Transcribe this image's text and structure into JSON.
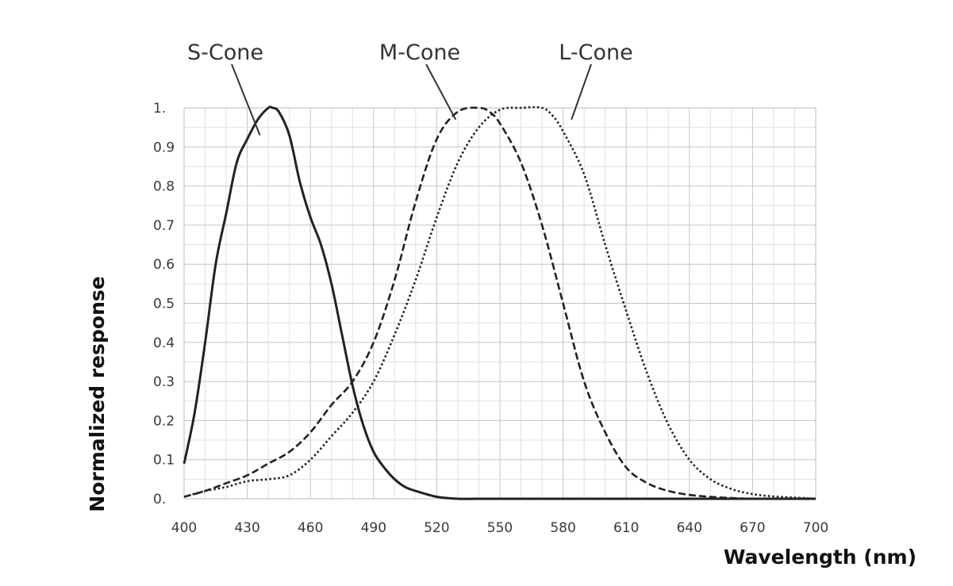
{
  "chart_data": {
    "type": "line",
    "title": "",
    "xlabel": "Wavelength (nm)",
    "ylabel": "Normalized response",
    "xlim": [
      400,
      700
    ],
    "ylim": [
      0,
      1
    ],
    "grid": true,
    "x_ticks": [
      {
        "value": 400,
        "label": "400"
      },
      {
        "value": 430,
        "label": "430"
      },
      {
        "value": 460,
        "label": "460"
      },
      {
        "value": 490,
        "label": "490"
      },
      {
        "value": 520,
        "label": "520"
      },
      {
        "value": 550,
        "label": "550"
      },
      {
        "value": 580,
        "label": "580"
      },
      {
        "value": 610,
        "label": "610"
      },
      {
        "value": 640,
        "label": "640"
      },
      {
        "value": 670,
        "label": "670"
      },
      {
        "value": 700,
        "label": "700"
      }
    ],
    "y_ticks": [
      {
        "value": 0,
        "label": "0."
      },
      {
        "value": 0.1,
        "label": "0.1"
      },
      {
        "value": 0.2,
        "label": "0.2"
      },
      {
        "value": 0.3,
        "label": "0.3"
      },
      {
        "value": 0.4,
        "label": "0.4"
      },
      {
        "value": 0.5,
        "label": "0.5"
      },
      {
        "value": 0.6,
        "label": "0.6"
      },
      {
        "value": 0.7,
        "label": "0.7"
      },
      {
        "value": 0.8,
        "label": "0.8"
      },
      {
        "value": 0.9,
        "label": "0.9"
      },
      {
        "value": 1,
        "label": "1."
      }
    ],
    "series": [
      {
        "name": "S-Cone",
        "style": "solid",
        "color": "#222222",
        "x": [
          400,
          405,
          410,
          415,
          420,
          425,
          430,
          435,
          440,
          442,
          445,
          450,
          455,
          460,
          465,
          470,
          475,
          480,
          485,
          490,
          495,
          500,
          505,
          510,
          520,
          530,
          540,
          560,
          600,
          650,
          700
        ],
        "y": [
          0.09,
          0.22,
          0.4,
          0.6,
          0.73,
          0.86,
          0.92,
          0.97,
          1.0,
          1.0,
          0.99,
          0.93,
          0.81,
          0.72,
          0.65,
          0.55,
          0.42,
          0.29,
          0.19,
          0.12,
          0.08,
          0.05,
          0.03,
          0.02,
          0.005,
          0.0,
          0.0,
          0.0,
          0.0,
          0.0,
          0.0
        ]
      },
      {
        "name": "M-Cone",
        "style": "dashed",
        "color": "#222222",
        "x": [
          400,
          410,
          420,
          430,
          440,
          450,
          460,
          470,
          480,
          490,
          500,
          510,
          520,
          530,
          540,
          545,
          550,
          560,
          570,
          580,
          590,
          600,
          610,
          620,
          630,
          640,
          650,
          660,
          670,
          680,
          700
        ],
        "y": [
          0.005,
          0.02,
          0.04,
          0.06,
          0.09,
          0.12,
          0.17,
          0.24,
          0.3,
          0.4,
          0.56,
          0.76,
          0.92,
          0.99,
          1.0,
          0.99,
          0.96,
          0.86,
          0.7,
          0.5,
          0.3,
          0.17,
          0.08,
          0.04,
          0.02,
          0.01,
          0.005,
          0.002,
          0.0,
          0.0,
          0.0
        ]
      },
      {
        "name": "L-Cone",
        "style": "dotted",
        "color": "#222222",
        "x": [
          400,
          410,
          420,
          430,
          440,
          450,
          460,
          470,
          480,
          490,
          500,
          510,
          520,
          530,
          540,
          550,
          560,
          570,
          575,
          580,
          590,
          600,
          610,
          620,
          630,
          640,
          650,
          660,
          670,
          680,
          690,
          700
        ],
        "y": [
          0.005,
          0.02,
          0.03,
          0.045,
          0.05,
          0.06,
          0.1,
          0.16,
          0.22,
          0.3,
          0.42,
          0.56,
          0.72,
          0.86,
          0.95,
          0.995,
          1.0,
          1.0,
          0.98,
          0.94,
          0.83,
          0.65,
          0.48,
          0.32,
          0.19,
          0.1,
          0.05,
          0.025,
          0.012,
          0.006,
          0.003,
          0.0
        ]
      }
    ],
    "annotations": [
      {
        "text": "S-Cone",
        "target_series": "S-Cone",
        "point_at": [
          436,
          0.93
        ]
      },
      {
        "text": "M-Cone",
        "target_series": "M-Cone",
        "point_at": [
          529,
          0.97
        ]
      },
      {
        "text": "L-Cone",
        "target_series": "L-Cone",
        "point_at": [
          584,
          0.97
        ]
      }
    ]
  }
}
